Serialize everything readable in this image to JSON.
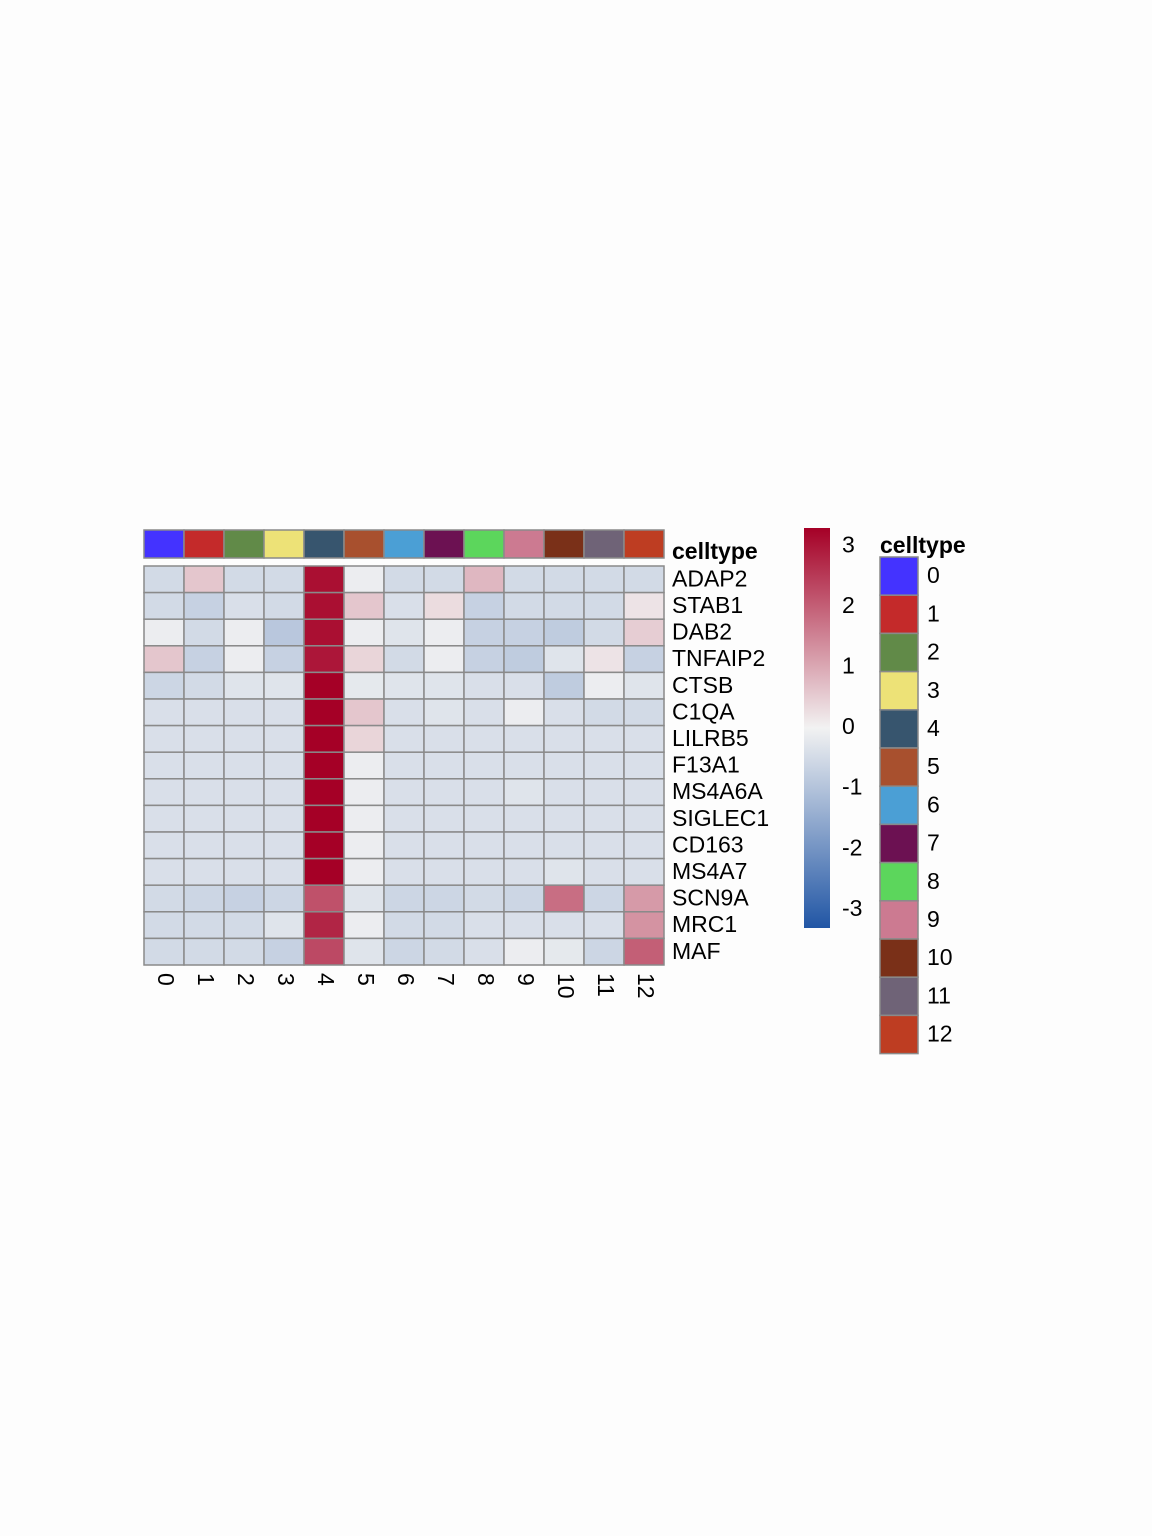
{
  "chart_data": {
    "type": "heatmap",
    "annotation_label": "celltype",
    "legend_title": "celltype",
    "columns": [
      "0",
      "1",
      "2",
      "3",
      "4",
      "5",
      "6",
      "7",
      "8",
      "9",
      "10",
      "11",
      "12"
    ],
    "column_annotation_colors": [
      "#4433ff",
      "#c42a2a",
      "#618a48",
      "#ede277",
      "#37556e",
      "#a8502e",
      "#4b9fd5",
      "#6c1152",
      "#5cd65c",
      "#cc7a91",
      "#7a3018",
      "#6f6377",
      "#be3d22"
    ],
    "rows": [
      "ADAP2",
      "STAB1",
      "DAB2",
      "TNFAIP2",
      "CTSB",
      "C1QA",
      "LILRB5",
      "F13A1",
      "MS4A6A",
      "SIGLEC1",
      "CD163",
      "MS4A7",
      "SCN9A",
      "MRC1",
      "MAF"
    ],
    "values": [
      [
        -0.5,
        0.6,
        -0.5,
        -0.5,
        3.1,
        -0.1,
        -0.5,
        -0.5,
        0.8,
        -0.5,
        -0.5,
        -0.5,
        -0.5
      ],
      [
        -0.5,
        -0.7,
        -0.4,
        -0.5,
        3.1,
        0.6,
        -0.4,
        0.3,
        -0.7,
        -0.5,
        -0.5,
        -0.5,
        0.2
      ],
      [
        -0.1,
        -0.5,
        -0.1,
        -0.9,
        3.1,
        -0.1,
        -0.3,
        -0.1,
        -0.7,
        -0.7,
        -0.8,
        -0.5,
        0.5
      ],
      [
        0.6,
        -0.7,
        -0.1,
        -0.7,
        3.0,
        0.4,
        -0.5,
        -0.1,
        -0.7,
        -0.8,
        -0.3,
        0.2,
        -0.7
      ],
      [
        -0.6,
        -0.5,
        -0.3,
        -0.3,
        3.3,
        -0.2,
        -0.3,
        -0.3,
        -0.4,
        -0.4,
        -0.8,
        -0.1,
        -0.3
      ],
      [
        -0.4,
        -0.4,
        -0.4,
        -0.4,
        3.3,
        0.6,
        -0.4,
        -0.3,
        -0.4,
        -0.1,
        -0.4,
        -0.5,
        -0.5
      ],
      [
        -0.4,
        -0.4,
        -0.4,
        -0.4,
        3.3,
        0.4,
        -0.4,
        -0.4,
        -0.4,
        -0.4,
        -0.4,
        -0.4,
        -0.4
      ],
      [
        -0.4,
        -0.4,
        -0.4,
        -0.4,
        3.3,
        -0.1,
        -0.4,
        -0.4,
        -0.4,
        -0.4,
        -0.4,
        -0.4,
        -0.4
      ],
      [
        -0.4,
        -0.4,
        -0.4,
        -0.4,
        3.3,
        -0.1,
        -0.4,
        -0.4,
        -0.4,
        -0.3,
        -0.4,
        -0.4,
        -0.4
      ],
      [
        -0.4,
        -0.4,
        -0.4,
        -0.4,
        3.3,
        -0.1,
        -0.4,
        -0.4,
        -0.4,
        -0.4,
        -0.4,
        -0.4,
        -0.4
      ],
      [
        -0.4,
        -0.4,
        -0.4,
        -0.4,
        3.3,
        -0.1,
        -0.4,
        -0.4,
        -0.4,
        -0.4,
        -0.4,
        -0.4,
        -0.4
      ],
      [
        -0.4,
        -0.4,
        -0.4,
        -0.4,
        3.3,
        -0.1,
        -0.4,
        -0.4,
        -0.4,
        -0.4,
        -0.3,
        -0.4,
        -0.4
      ],
      [
        -0.5,
        -0.6,
        -0.7,
        -0.6,
        2.2,
        -0.3,
        -0.6,
        -0.6,
        -0.5,
        -0.6,
        1.8,
        -0.6,
        1.2
      ],
      [
        -0.5,
        -0.5,
        -0.5,
        -0.3,
        2.8,
        -0.1,
        -0.5,
        -0.5,
        -0.4,
        -0.4,
        -0.4,
        -0.4,
        1.3
      ],
      [
        -0.5,
        -0.5,
        -0.5,
        -0.7,
        2.3,
        -0.3,
        -0.6,
        -0.5,
        -0.4,
        -0.1,
        -0.2,
        -0.6,
        2.0
      ]
    ],
    "color_scale": {
      "min": -3.3,
      "max": 3.3,
      "low_color": "#2156a5",
      "mid_color": "#f2f2f2",
      "high_color": "#a50026",
      "ticks": [
        "-3",
        "-2",
        "-1",
        "0",
        "1",
        "2",
        "3"
      ]
    }
  }
}
